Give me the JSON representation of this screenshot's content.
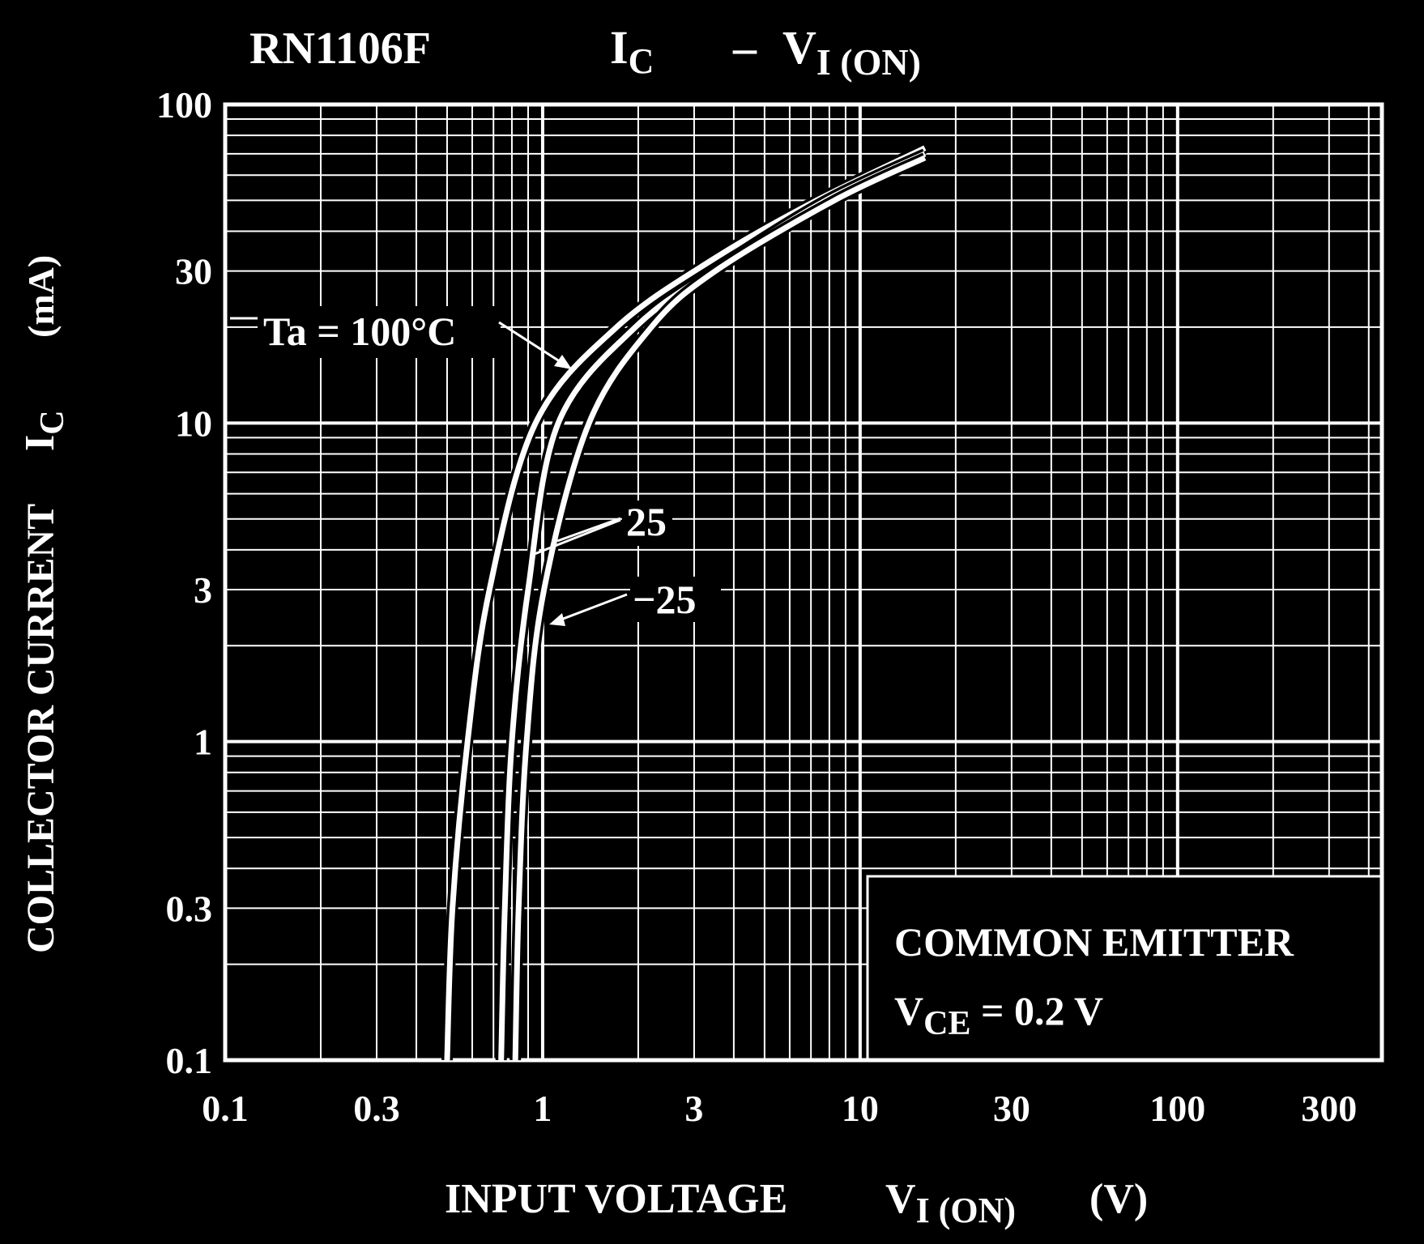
{
  "colors": {
    "background": "#000000",
    "foreground": "#ffffff"
  },
  "chart_data": {
    "type": "line",
    "title": {
      "part": "RN1106F",
      "main": "I",
      "main_sub": "C",
      "dash": "–",
      "v": "V",
      "v_sub": "I (ON)"
    },
    "xlabel": {
      "text": "INPUT VOLTAGE",
      "sym": "V",
      "sym_sub": "I (ON)",
      "unit": "(V)"
    },
    "ylabel": {
      "text": "COLLECTOR CURRENT",
      "sym": "I",
      "sym_sub": "C",
      "unit": "(mA)"
    },
    "x_scale": "log",
    "y_scale": "log",
    "xlim": [
      0.1,
      440
    ],
    "ylim": [
      0.1,
      100
    ],
    "grid": true,
    "x_ticks": [
      0.1,
      0.3,
      1,
      3,
      10,
      30,
      100,
      300
    ],
    "x_tick_labels": [
      "0.1",
      "0.3",
      "1",
      "3",
      "10",
      "30",
      "100",
      "300"
    ],
    "y_ticks": [
      100,
      30,
      10,
      3,
      1,
      0.3,
      0.1
    ],
    "y_tick_labels": [
      "100",
      "30",
      "10",
      "3",
      "1",
      "0.3",
      "0.1"
    ],
    "series": [
      {
        "name": "Ta = 100°C",
        "x": [
          0.5,
          0.52,
          0.58,
          0.68,
          0.95,
          1.71,
          3.5,
          7.3,
          16
        ],
        "y": [
          0.1,
          0.3,
          1,
          3,
          10,
          20,
          33,
          50,
          73
        ]
      },
      {
        "name": "25",
        "x": [
          0.74,
          0.76,
          0.8,
          0.9,
          1.12,
          1.96,
          3.6,
          7.8,
          16
        ],
        "y": [
          0.1,
          0.3,
          1,
          3,
          10,
          20,
          31,
          50,
          70
        ]
      },
      {
        "name": "−25",
        "x": [
          0.82,
          0.84,
          0.89,
          1.01,
          1.4,
          2.2,
          3.5,
          8.3,
          16
        ],
        "y": [
          0.1,
          0.3,
          1,
          3,
          10,
          20,
          30,
          50,
          68
        ]
      }
    ],
    "annotations": {
      "ta100": "Ta = 100°C",
      "ta25": "25",
      "tam25": "−25"
    },
    "legend": {
      "line1": "COMMON EMITTER",
      "line2_sym": "V",
      "line2_sub": "CE",
      "line2_rest": " = 0.2 V",
      "placement": "bottom-right"
    }
  }
}
